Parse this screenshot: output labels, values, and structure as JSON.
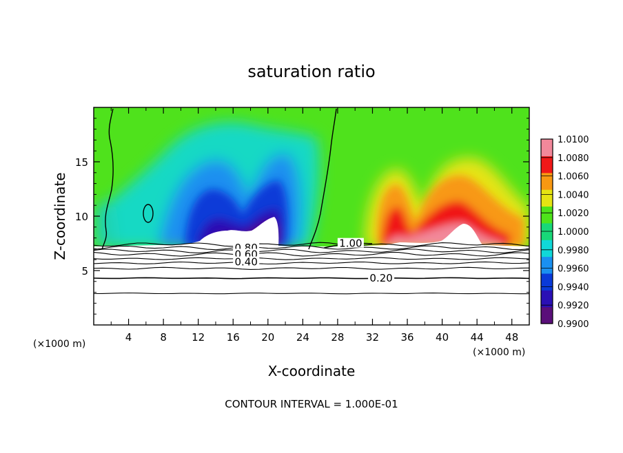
{
  "chart_data": {
    "type": "heatmap",
    "title": "saturation ratio",
    "xlabel": "X-coordinate",
    "ylabel": "Z-coordinate",
    "x_units": "(×1000 m)",
    "y_units": "(×1000 m)",
    "xlim": [
      0,
      50
    ],
    "ylim": [
      0,
      20
    ],
    "x_ticks": [
      4,
      8,
      12,
      16,
      20,
      24,
      28,
      32,
      36,
      40,
      44,
      48
    ],
    "y_ticks": [
      5,
      10,
      15
    ],
    "note": "CONTOUR INTERVAL = 1.000E-01",
    "colorbar": {
      "min": 0.99,
      "max": 1.01,
      "tick_values": [
        "0.9900",
        "0.9920",
        "0.9940",
        "0.9960",
        "0.9980",
        "1.0000",
        "1.0020",
        "1.0040",
        "1.0060",
        "1.0080",
        "1.0100"
      ],
      "colors": [
        "#5a0f7a",
        "#2a10b5",
        "#0a3ad8",
        "#1a90f0",
        "#10d8d8",
        "#18d878",
        "#4ee41a",
        "#e6e412",
        "#f89812",
        "#f01818",
        "#f2889a"
      ]
    },
    "contour_labels": [
      {
        "text": "0.80",
        "x": 17.5,
        "z": 6.9
      },
      {
        "text": "0.60",
        "x": 17.5,
        "z": 6.3
      },
      {
        "text": "0.40",
        "x": 17.5,
        "z": 5.6
      },
      {
        "text": "0.20",
        "x": 33.0,
        "z": 4.1
      },
      {
        "text": "1.00",
        "x": 29.5,
        "z": 7.3
      }
    ],
    "contours_z": [
      7.4,
      7.1,
      6.8,
      6.5,
      6.1,
      5.7,
      5.2,
      4.3,
      2.9
    ]
  }
}
